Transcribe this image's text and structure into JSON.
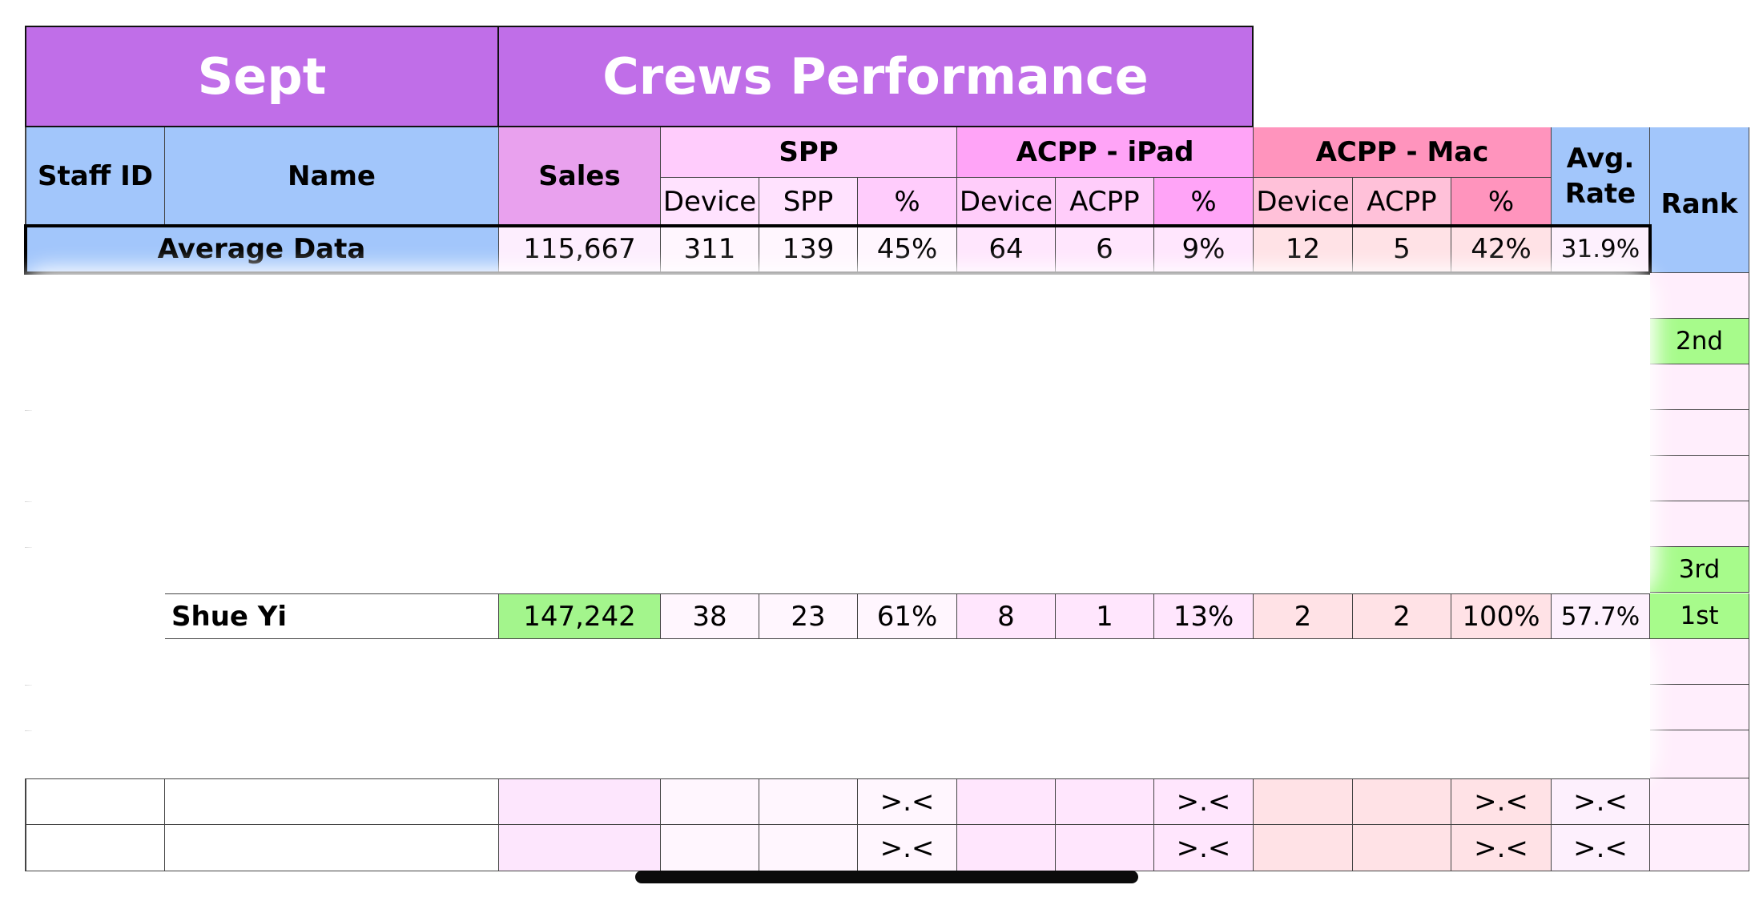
{
  "header": {
    "month": "Sept",
    "title": "Crews Performance"
  },
  "columns": {
    "staff_id": "Staff ID",
    "name": "Name",
    "sales": "Sales",
    "spp_group": "SPP",
    "acpp_ipad_group": "ACPP - iPad",
    "acpp_mac_group": "ACPP - Mac",
    "avg_rate_line1": "Avg.",
    "avg_rate_line2": "Rate",
    "rank": "Rank",
    "spp_sub": [
      "Device",
      "SPP",
      "%"
    ],
    "ipad_sub": [
      "Device",
      "ACPP",
      "%"
    ],
    "mac_sub": [
      "Device",
      "ACPP",
      "%"
    ]
  },
  "average": {
    "label": "Average Data",
    "sales": "115,667",
    "spp_device": "311",
    "spp_count": "139",
    "spp_pct": "45%",
    "ipad_device": "64",
    "ipad_acpp": "6",
    "ipad_pct": "9%",
    "mac_device": "12",
    "mac_acpp": "5",
    "mac_pct": "42%",
    "avg_rate": "31.9%"
  },
  "visible_ranks": {
    "row_2": "2nd",
    "row_7": "3rd"
  },
  "featured_row": {
    "name": "Shue Yi",
    "sales": "147,242",
    "spp_device": "38",
    "spp_count": "23",
    "spp_pct": "61%",
    "ipad_device": "8",
    "ipad_acpp": "1",
    "ipad_pct": "13%",
    "mac_device": "2",
    "mac_acpp": "2",
    "mac_pct": "100%",
    "avg_rate": "57.7%",
    "rank": "1st"
  },
  "empty_rows": {
    "placeholder": ">.<"
  },
  "colors": {
    "title_purple": "#c06ee8",
    "header_blue": "#a2c6fb",
    "sales_header": "#e9a1ee",
    "spp_header": "#ffccfc",
    "ipad_header": "#ffa4f7",
    "mac_header": "#ff94bd",
    "rank_green": "#a7fb8b",
    "sales_green": "#a3f58c"
  }
}
